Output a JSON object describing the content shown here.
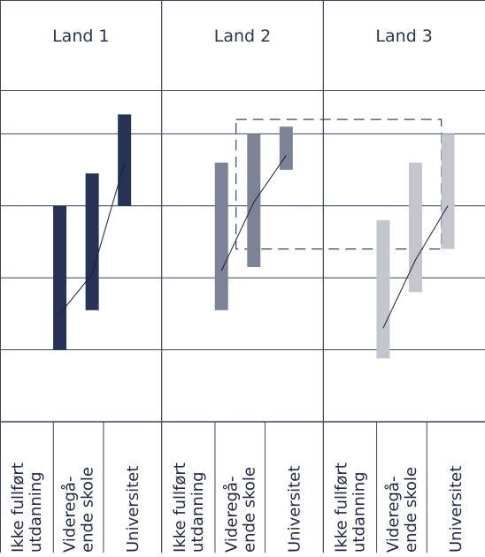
{
  "chart_data": {
    "type": "range-bar",
    "panels": [
      {
        "title": "Land 1",
        "color": "#263354",
        "categories": [
          {
            "label": [
              "Ikke fullført",
              "utdanning"
            ],
            "low": 2.0,
            "high": 4.0,
            "point": 2.5
          },
          {
            "label": [
              "Videregå-",
              "ende skole"
            ],
            "low": 2.55,
            "high": 4.45,
            "point": 3.05
          },
          {
            "label": [
              "Universitet"
            ],
            "low": 4.0,
            "high": 5.27,
            "point": 4.6
          }
        ]
      },
      {
        "title": "Land 2",
        "color": "#7c8396",
        "categories": [
          {
            "label": [
              "Ikke fullført",
              "utdanning"
            ],
            "low": 2.55,
            "high": 4.6,
            "point": 3.1
          },
          {
            "label": [
              "Videregå-",
              "ende skole"
            ],
            "low": 3.15,
            "high": 5.0,
            "point": 4.05
          },
          {
            "label": [
              "Universitet"
            ],
            "low": 4.5,
            "high": 5.1,
            "point": 4.7
          }
        ]
      },
      {
        "title": "Land 3",
        "color": "#c3c6cf",
        "categories": [
          {
            "label": [
              "Ikke fullført",
              "utdanning"
            ],
            "low": 1.88,
            "high": 3.8,
            "point": 2.3
          },
          {
            "label": [
              "Videregå-",
              "ende skole"
            ],
            "low": 2.8,
            "high": 4.6,
            "point": 3.25
          },
          {
            "label": [
              "Universitet"
            ],
            "low": 3.4,
            "high": 5.0,
            "point": 4.0
          }
        ]
      }
    ],
    "ylim": [
      1,
      6
    ],
    "grid": true,
    "highlight_box": {
      "y_range": [
        3.4,
        5.2
      ],
      "style": "dashed"
    }
  }
}
